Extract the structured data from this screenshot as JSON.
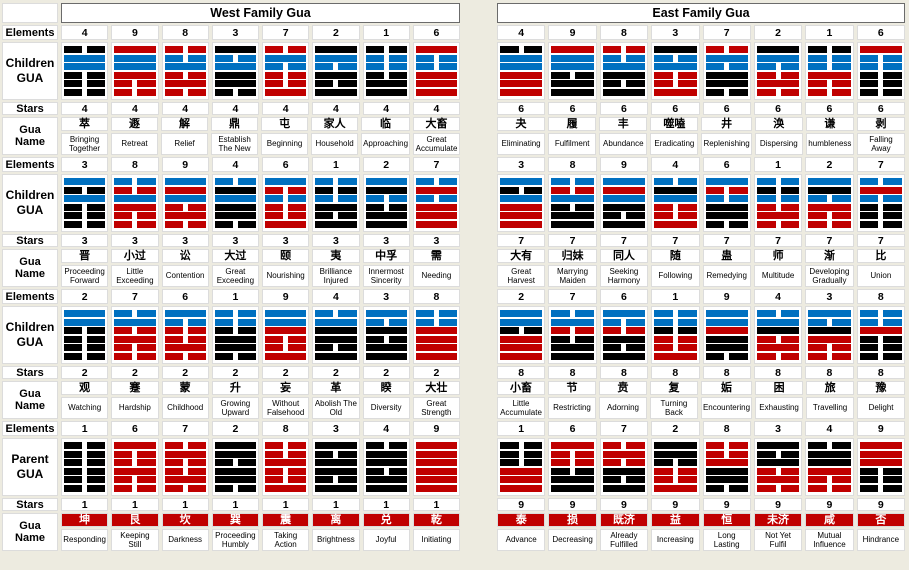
{
  "colors": {
    "background": "#EDEBE0",
    "cell_border": "#DCDCDC",
    "red": "#C00000",
    "blue": "#0070C0",
    "black": "#000000",
    "parent_name_bg": "#C00000",
    "parent_name_fg": "#FFFFFF"
  },
  "line_code_legend": {
    "first_char": {
      "r": "red line (yang trigram)",
      "k": "black line (yin trigram)",
      "u": "blue line (changed line)"
    },
    "second_char": {
      "s": "solid yang line",
      "b": "broken yin line"
    },
    "order": "lines listed top to bottom"
  },
  "row_labels": {
    "elements": "Elements",
    "children_gua": "Children GUA",
    "parent_gua": "Parent GUA",
    "stars": "Stars",
    "gua_name": "Gua Name"
  },
  "sections": [
    {
      "title": "West Family Gua",
      "blocks": [
        {
          "elements": [
            "4",
            "9",
            "8",
            "3",
            "7",
            "2",
            "1",
            "6"
          ],
          "stars": "4",
          "gua": [
            {
              "cn": "萃",
              "en": "Bringing Together",
              "lines": [
                "kb",
                "us",
                "us",
                "kb",
                "kb",
                "kb"
              ]
            },
            {
              "cn": "遯",
              "en": "Retreat",
              "lines": [
                "rs",
                "us",
                "us",
                "rs",
                "rb",
                "rb"
              ]
            },
            {
              "cn": "解",
              "en": "Relief",
              "lines": [
                "rb",
                "ub",
                "us",
                "rb",
                "rs",
                "rb"
              ]
            },
            {
              "cn": "鼎",
              "en": "Establish The New",
              "lines": [
                "ks",
                "ub",
                "us",
                "ks",
                "ks",
                "kb"
              ]
            },
            {
              "cn": "屯",
              "en": "Beginning",
              "lines": [
                "rb",
                "us",
                "ub",
                "rb",
                "rb",
                "rs"
              ]
            },
            {
              "cn": "家人",
              "en": "Household",
              "lines": [
                "ks",
                "us",
                "ub",
                "ks",
                "kb",
                "ks"
              ]
            },
            {
              "cn": "临",
              "en": "Approaching",
              "lines": [
                "kb",
                "ub",
                "ub",
                "kb",
                "ks",
                "ks"
              ]
            },
            {
              "cn": "大畜",
              "en": "Great Accumulate",
              "lines": [
                "rs",
                "ub",
                "ub",
                "rs",
                "rs",
                "rs"
              ]
            }
          ]
        },
        {
          "elements": [
            "3",
            "8",
            "9",
            "4",
            "6",
            "1",
            "2",
            "7"
          ],
          "stars": "3",
          "gua": [
            {
              "cn": "晋",
              "en": "Proceeding Forward",
              "lines": [
                "us",
                "kb",
                "us",
                "kb",
                "kb",
                "kb"
              ]
            },
            {
              "cn": "小过",
              "en": "Little Exceeding",
              "lines": [
                "ub",
                "rb",
                "us",
                "rs",
                "rb",
                "rb"
              ]
            },
            {
              "cn": "讼",
              "en": "Contention",
              "lines": [
                "us",
                "rs",
                "us",
                "rb",
                "rs",
                "rb"
              ]
            },
            {
              "cn": "大过",
              "en": "Great Exceeding",
              "lines": [
                "ub",
                "ks",
                "us",
                "ks",
                "ks",
                "kb"
              ]
            },
            {
              "cn": "颐",
              "en": "Nourishing",
              "lines": [
                "us",
                "rb",
                "ub",
                "rb",
                "rb",
                "rs"
              ]
            },
            {
              "cn": "夷",
              "en": "Brilliance Injured",
              "lines": [
                "ub",
                "kb",
                "ub",
                "ks",
                "kb",
                "ks"
              ]
            },
            {
              "cn": "中孚",
              "en": "Innermost Sincerity",
              "lines": [
                "us",
                "ks",
                "ub",
                "kb",
                "ks",
                "ks"
              ]
            },
            {
              "cn": "需",
              "en": "Needing",
              "lines": [
                "ub",
                "rs",
                "ub",
                "rs",
                "rs",
                "rs"
              ]
            }
          ]
        },
        {
          "elements": [
            "2",
            "7",
            "6",
            "1",
            "9",
            "4",
            "3",
            "8"
          ],
          "stars": "2",
          "gua": [
            {
              "cn": "观",
              "en": "Watching",
              "lines": [
                "us",
                "us",
                "kb",
                "kb",
                "kb",
                "kb"
              ]
            },
            {
              "cn": "蹇",
              "en": "Hardship",
              "lines": [
                "ub",
                "us",
                "rb",
                "rs",
                "rb",
                "rb"
              ]
            },
            {
              "cn": "蒙",
              "en": "Childhood",
              "lines": [
                "us",
                "ub",
                "rb",
                "rb",
                "rs",
                "rb"
              ]
            },
            {
              "cn": "升",
              "en": "Growing Upward",
              "lines": [
                "ub",
                "ub",
                "kb",
                "ks",
                "ks",
                "kb"
              ]
            },
            {
              "cn": "妄",
              "en": "Without Falsehood",
              "lines": [
                "us",
                "us",
                "rs",
                "rb",
                "rb",
                "rs"
              ]
            },
            {
              "cn": "革",
              "en": "Abolish The Old",
              "lines": [
                "ub",
                "us",
                "ks",
                "ks",
                "kb",
                "ks"
              ]
            },
            {
              "cn": "睽",
              "en": "Diversity",
              "lines": [
                "us",
                "ub",
                "ks",
                "kb",
                "ks",
                "ks"
              ]
            },
            {
              "cn": "大壮",
              "en": "Great Strength",
              "lines": [
                "ub",
                "ub",
                "rs",
                "rs",
                "rs",
                "rs"
              ]
            }
          ]
        },
        {
          "elements": [
            "1",
            "6",
            "7",
            "2",
            "8",
            "3",
            "4",
            "9"
          ],
          "stars": "1",
          "gua": [
            {
              "cn": "坤",
              "en": "Responding",
              "lines": [
                "kb",
                "kb",
                "kb",
                "kb",
                "kb",
                "kb"
              ]
            },
            {
              "cn": "艮",
              "en": "Keeping Still",
              "lines": [
                "rs",
                "rb",
                "rb",
                "rs",
                "rb",
                "rb"
              ]
            },
            {
              "cn": "坎",
              "en": "Darkness",
              "lines": [
                "rb",
                "rs",
                "rb",
                "rb",
                "rs",
                "rb"
              ]
            },
            {
              "cn": "巽",
              "en": "Proceeding Humbly",
              "lines": [
                "ks",
                "ks",
                "kb",
                "ks",
                "ks",
                "kb"
              ]
            },
            {
              "cn": "震",
              "en": "Taking Action",
              "lines": [
                "rb",
                "rb",
                "rs",
                "rb",
                "rb",
                "rs"
              ]
            },
            {
              "cn": "离",
              "en": "Brightness",
              "lines": [
                "ks",
                "kb",
                "ks",
                "ks",
                "kb",
                "ks"
              ]
            },
            {
              "cn": "兑",
              "en": "Joyful",
              "lines": [
                "kb",
                "ks",
                "ks",
                "kb",
                "ks",
                "ks"
              ]
            },
            {
              "cn": "乾",
              "en": "Initiating",
              "lines": [
                "rs",
                "rs",
                "rs",
                "rs",
                "rs",
                "rs"
              ]
            }
          ]
        }
      ]
    },
    {
      "title": "East Family Gua",
      "blocks": [
        {
          "elements": [
            "4",
            "9",
            "8",
            "3",
            "7",
            "2",
            "1",
            "6"
          ],
          "stars": "6",
          "gua": [
            {
              "cn": "夬",
              "en": "Eliminating",
              "lines": [
                "kb",
                "us",
                "us",
                "rs",
                "rs",
                "rs"
              ]
            },
            {
              "cn": "履",
              "en": "Fulfilment",
              "lines": [
                "rs",
                "us",
                "us",
                "kb",
                "ks",
                "ks"
              ]
            },
            {
              "cn": "丰",
              "en": "Abundance",
              "lines": [
                "rb",
                "ub",
                "us",
                "ks",
                "kb",
                "ks"
              ]
            },
            {
              "cn": "噬嗑",
              "en": "Eradicating",
              "lines": [
                "ks",
                "ub",
                "us",
                "rb",
                "rb",
                "rs"
              ]
            },
            {
              "cn": "井",
              "en": "Replenishing",
              "lines": [
                "rb",
                "us",
                "ub",
                "ks",
                "ks",
                "kb"
              ]
            },
            {
              "cn": "涣",
              "en": "Dispersing",
              "lines": [
                "ks",
                "us",
                "ub",
                "rb",
                "rs",
                "rb"
              ]
            },
            {
              "cn": "谦",
              "en": "humbleness",
              "lines": [
                "kb",
                "ub",
                "ub",
                "rs",
                "rb",
                "rb"
              ]
            },
            {
              "cn": "剥",
              "en": "Falling Away",
              "lines": [
                "rs",
                "ub",
                "ub",
                "kb",
                "kb",
                "kb"
              ]
            }
          ]
        },
        {
          "elements": [
            "3",
            "8",
            "9",
            "4",
            "6",
            "1",
            "2",
            "7"
          ],
          "stars": "7",
          "gua": [
            {
              "cn": "大有",
              "en": "Great Harvest",
              "lines": [
                "us",
                "kb",
                "us",
                "rs",
                "rs",
                "rs"
              ]
            },
            {
              "cn": "归妹",
              "en": "Marrying Maiden",
              "lines": [
                "ub",
                "rb",
                "us",
                "kb",
                "ks",
                "ks"
              ]
            },
            {
              "cn": "同人",
              "en": "Seeking Harmony",
              "lines": [
                "us",
                "rs",
                "us",
                "ks",
                "kb",
                "ks"
              ]
            },
            {
              "cn": "随",
              "en": "Following",
              "lines": [
                "ub",
                "ks",
                "us",
                "rb",
                "rb",
                "rs"
              ]
            },
            {
              "cn": "蛊",
              "en": "Remedying",
              "lines": [
                "us",
                "rb",
                "ub",
                "ks",
                "ks",
                "kb"
              ]
            },
            {
              "cn": "师",
              "en": "Multitude",
              "lines": [
                "ub",
                "kb",
                "ub",
                "rb",
                "rs",
                "rb"
              ]
            },
            {
              "cn": "渐",
              "en": "Developing Gradually",
              "lines": [
                "us",
                "ks",
                "ub",
                "rs",
                "rb",
                "rb"
              ]
            },
            {
              "cn": "比",
              "en": "Union",
              "lines": [
                "ub",
                "rs",
                "ub",
                "kb",
                "kb",
                "kb"
              ]
            }
          ]
        },
        {
          "elements": [
            "2",
            "7",
            "6",
            "1",
            "9",
            "4",
            "3",
            "8"
          ],
          "stars": "8",
          "gua": [
            {
              "cn": "小畜",
              "en": "Little Accumulate",
              "lines": [
                "us",
                "us",
                "kb",
                "rs",
                "rs",
                "rs"
              ]
            },
            {
              "cn": "节",
              "en": "Restricting",
              "lines": [
                "ub",
                "us",
                "rb",
                "kb",
                "ks",
                "ks"
              ]
            },
            {
              "cn": "贲",
              "en": "Adorning",
              "lines": [
                "us",
                "ub",
                "rb",
                "ks",
                "kb",
                "ks"
              ]
            },
            {
              "cn": "复",
              "en": "Turning Back",
              "lines": [
                "ub",
                "ub",
                "kb",
                "rb",
                "rb",
                "rs"
              ]
            },
            {
              "cn": "姤",
              "en": "Encountering",
              "lines": [
                "us",
                "us",
                "rs",
                "ks",
                "ks",
                "kb"
              ]
            },
            {
              "cn": "困",
              "en": "Exhausting",
              "lines": [
                "ub",
                "us",
                "ks",
                "rb",
                "rs",
                "rb"
              ]
            },
            {
              "cn": "旅",
              "en": "Travelling",
              "lines": [
                "us",
                "ub",
                "ks",
                "rs",
                "rb",
                "rb"
              ]
            },
            {
              "cn": "豫",
              "en": "Delight",
              "lines": [
                "ub",
                "ub",
                "rs",
                "kb",
                "kb",
                "kb"
              ]
            }
          ]
        },
        {
          "elements": [
            "1",
            "6",
            "7",
            "2",
            "8",
            "3",
            "4",
            "9"
          ],
          "stars": "9",
          "gua": [
            {
              "cn": "泰",
              "en": "Advance",
              "lines": [
                "kb",
                "kb",
                "kb",
                "rs",
                "rs",
                "rs"
              ]
            },
            {
              "cn": "损",
              "en": "Decreasing",
              "lines": [
                "rs",
                "rb",
                "rb",
                "kb",
                "ks",
                "ks"
              ]
            },
            {
              "cn": "既济",
              "en": "Already Fulfilled",
              "lines": [
                "rb",
                "rs",
                "rb",
                "ks",
                "kb",
                "ks"
              ]
            },
            {
              "cn": "益",
              "en": "Increasing",
              "lines": [
                "ks",
                "ks",
                "kb",
                "rb",
                "rb",
                "rs"
              ]
            },
            {
              "cn": "恒",
              "en": "Long Lasting",
              "lines": [
                "rb",
                "rb",
                "rs",
                "ks",
                "ks",
                "kb"
              ]
            },
            {
              "cn": "未济",
              "en": "Not Yet Fulfil",
              "lines": [
                "ks",
                "kb",
                "ks",
                "rb",
                "rs",
                "rb"
              ]
            },
            {
              "cn": "咸",
              "en": "Mutual Influence",
              "lines": [
                "kb",
                "ks",
                "ks",
                "rs",
                "rb",
                "rb"
              ]
            },
            {
              "cn": "否",
              "en": "Hindrance",
              "lines": [
                "rs",
                "rs",
                "rs",
                "kb",
                "kb",
                "kb"
              ]
            }
          ]
        }
      ]
    }
  ]
}
